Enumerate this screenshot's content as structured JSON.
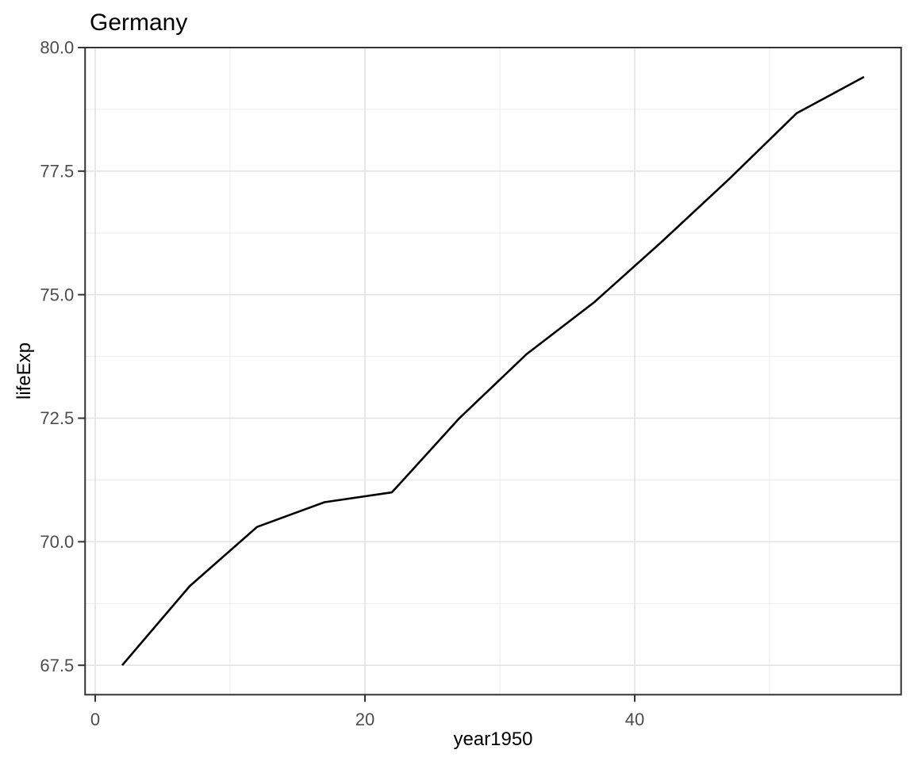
{
  "chart_data": {
    "type": "line",
    "title": "Germany",
    "xlabel": "year1950",
    "ylabel": "lifeExp",
    "series": [
      {
        "name": "lifeExp",
        "x": [
          2,
          7,
          12,
          17,
          22,
          27,
          32,
          37,
          42,
          47,
          52,
          57
        ],
        "y": [
          67.5,
          69.1,
          70.3,
          70.8,
          71.0,
          72.5,
          73.8,
          74.847,
          76.07,
          77.34,
          78.67,
          79.406
        ]
      }
    ],
    "xlim": [
      -0.75,
      59.75
    ],
    "ylim": [
      66.905,
      80.0
    ],
    "x_major_ticks": [
      0,
      20,
      40
    ],
    "x_tick_labels": [
      "0",
      "20",
      "40"
    ],
    "x_minor_ticks": [
      10,
      30,
      50
    ],
    "y_major_ticks": [
      67.5,
      70.0,
      72.5,
      75.0,
      77.5,
      80.0
    ],
    "y_tick_labels": [
      "67.5",
      "70.0",
      "72.5",
      "75.0",
      "77.5",
      "80.0"
    ],
    "y_minor_ticks": [
      68.75,
      71.25,
      73.75,
      76.25,
      78.75
    ],
    "grid": "major-and-minor",
    "legend": "none",
    "colors": {
      "line": "#000000",
      "panel_border": "#333333",
      "tick_mark": "#333333",
      "grid_major": "#e3e3e3",
      "grid_minor": "#ededed",
      "tick_text": "#4d4d4d",
      "title_text": "#000000",
      "background": "#ffffff"
    }
  }
}
